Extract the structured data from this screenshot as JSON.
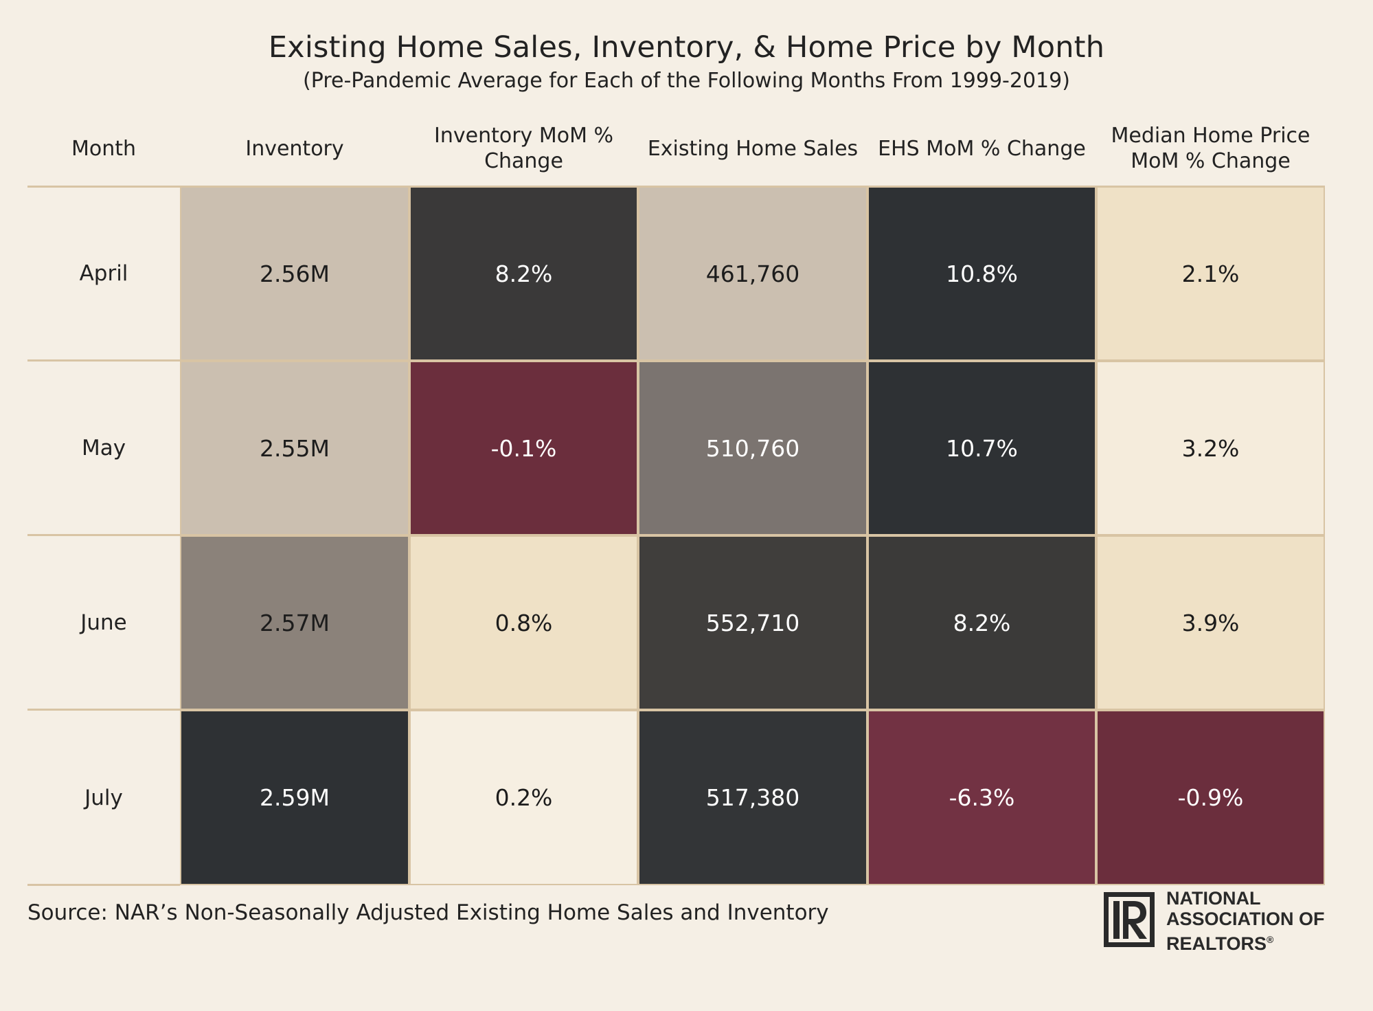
{
  "chart_data": {
    "type": "table",
    "title": "Existing Home Sales, Inventory, & Home Price by Month",
    "subtitle": "(Pre-Pandemic Average for Each of the Following Months From 1999-2019)",
    "columns": [
      "Month",
      "Inventory",
      "Inventory MoM % Change",
      "Existing Home Sales",
      "EHS MoM % Change",
      "Median Home Price MoM % Change"
    ],
    "column_labels": [
      [
        "Month"
      ],
      [
        "Inventory"
      ],
      [
        "Inventory MoM %",
        "Change"
      ],
      [
        "Existing Home Sales"
      ],
      [
        "EHS MoM % Change"
      ],
      [
        "Median Home Price",
        "MoM % Change"
      ]
    ],
    "rows": [
      {
        "month": "April",
        "cells": [
          "2.56M",
          "8.2%",
          "461,760",
          "10.8%",
          "2.1%"
        ]
      },
      {
        "month": "May",
        "cells": [
          "2.55M",
          "-0.1%",
          "510,760",
          "10.7%",
          "3.2%"
        ]
      },
      {
        "month": "June",
        "cells": [
          "2.57M",
          "0.8%",
          "552,710",
          "8.2%",
          "3.9%"
        ]
      },
      {
        "month": "July",
        "cells": [
          "2.59M",
          "0.2%",
          "517,380",
          "-6.3%",
          "-0.9%"
        ]
      }
    ],
    "cell_colors": [
      [
        "#cbbfb0",
        "#3a3939",
        "#cbbfb0",
        "#2e3134",
        "#efe1c6"
      ],
      [
        "#cbbfb0",
        "#6b2e3d",
        "#7b7470",
        "#2e3134",
        "#f5ecdc"
      ],
      [
        "#8b827a",
        "#efe1c6",
        "#403e3c",
        "#3b3a39",
        "#efe1c6"
      ],
      [
        "#2e3134",
        "#f6efe2",
        "#333537",
        "#723243",
        "#6b2e3d"
      ]
    ],
    "cell_text_colors": [
      [
        "#1c1c1c",
        "#ffffff",
        "#1c1c1c",
        "#ffffff",
        "#1c1c1c"
      ],
      [
        "#1c1c1c",
        "#ffffff",
        "#ffffff",
        "#ffffff",
        "#1c1c1c"
      ],
      [
        "#1c1c1c",
        "#1c1c1c",
        "#ffffff",
        "#ffffff",
        "#1c1c1c"
      ],
      [
        "#ffffff",
        "#1c1c1c",
        "#ffffff",
        "#ffffff",
        "#ffffff"
      ]
    ]
  },
  "footer": {
    "source": "Source: NAR’s Non-Seasonally Adjusted Existing Home Sales and Inventory"
  },
  "logo": {
    "line1": "NATIONAL",
    "line2": "ASSOCIATION OF",
    "line3": "REALTORS",
    "reg": "®"
  }
}
